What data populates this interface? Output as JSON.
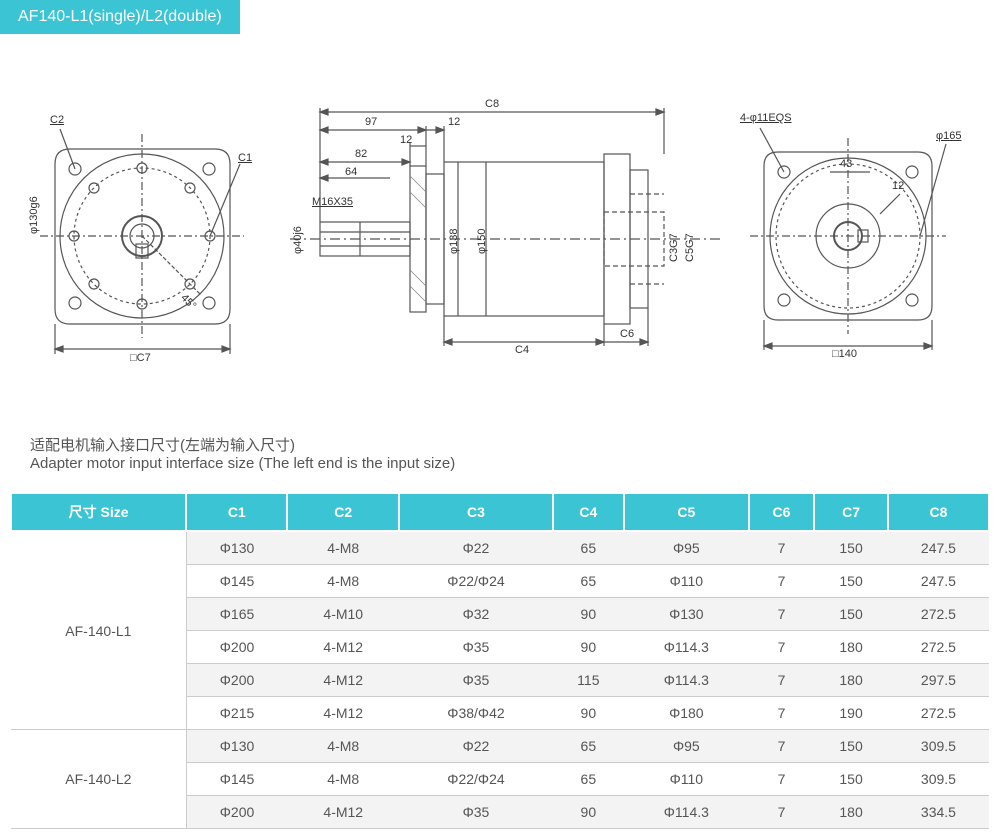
{
  "header": {
    "title": "AF140-L1(single)/L2(double)"
  },
  "diagram": {
    "left_view": {
      "labels": {
        "c2": "C2",
        "c1": "C1",
        "angle": "45°",
        "square": "□C7",
        "dia": "φ130g6"
      }
    },
    "center_view": {
      "labels": {
        "c8": "C8",
        "d97": "97",
        "d12a": "12",
        "d12b": "12",
        "d82": "82",
        "d64": "64",
        "thread": "M16X35",
        "shaft_dia": "φ40j6",
        "flange_dia": "φ138",
        "body_dia": "φ150",
        "c4": "C4",
        "c6": "C6",
        "c3": "C3G7",
        "c5": "C5G7"
      }
    },
    "right_view": {
      "labels": {
        "holes": "4-φ11EQS",
        "pcd": "φ165",
        "key_w": "43",
        "key_h": "12",
        "square": "□140"
      }
    }
  },
  "subtitle": {
    "cn": "适配电机输入接口尺寸(左端为输入尺寸)",
    "en": "Adapter motor input interface size (The left end is the input size)"
  },
  "table": {
    "headers": [
      "尺寸 Size",
      "C1",
      "C2",
      "C3",
      "C4",
      "C5",
      "C6",
      "C7",
      "C8"
    ],
    "groups": [
      {
        "label": "AF-140-L1",
        "rows": [
          [
            "Φ130",
            "4-M8",
            "Φ22",
            "65",
            "Φ95",
            "7",
            "150",
            "247.5"
          ],
          [
            "Φ145",
            "4-M8",
            "Φ22/Φ24",
            "65",
            "Φ110",
            "7",
            "150",
            "247.5"
          ],
          [
            "Φ165",
            "4-M10",
            "Φ32",
            "90",
            "Φ130",
            "7",
            "150",
            "272.5"
          ],
          [
            "Φ200",
            "4-M12",
            "Φ35",
            "90",
            "Φ114.3",
            "7",
            "180",
            "272.5"
          ],
          [
            "Φ200",
            "4-M12",
            "Φ35",
            "115",
            "Φ114.3",
            "7",
            "180",
            "297.5"
          ],
          [
            "Φ215",
            "4-M12",
            "Φ38/Φ42",
            "90",
            "Φ180",
            "7",
            "190",
            "272.5"
          ]
        ]
      },
      {
        "label": "AF-140-L2",
        "rows": [
          [
            "Φ130",
            "4-M8",
            "Φ22",
            "65",
            "Φ95",
            "7",
            "150",
            "309.5"
          ],
          [
            "Φ145",
            "4-M8",
            "Φ22/Φ24",
            "65",
            "Φ110",
            "7",
            "150",
            "309.5"
          ],
          [
            "Φ200",
            "4-M12",
            "Φ35",
            "90",
            "Φ114.3",
            "7",
            "180",
            "334.5"
          ]
        ]
      }
    ]
  },
  "colors": {
    "accent": "#3bc4d4",
    "line": "#555555",
    "hatch": "#888888",
    "text": "#555555"
  }
}
